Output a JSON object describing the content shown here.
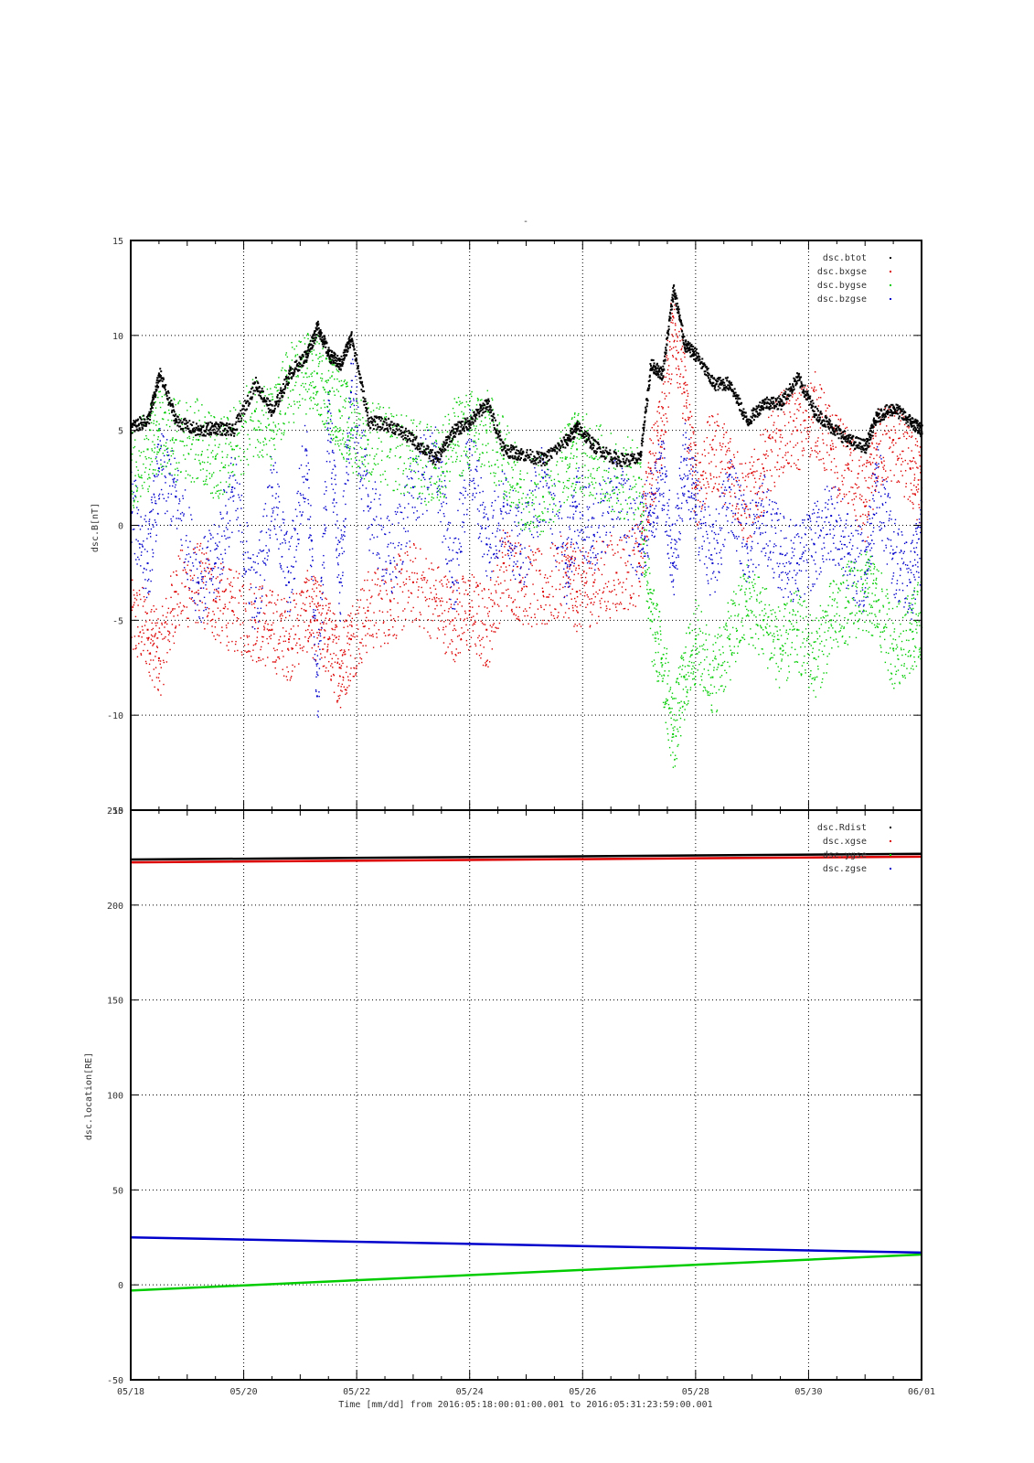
{
  "page_title": "-",
  "footer_xlabel": "Time [mm/dd]  from 2016:05:18:00:01:00.001  to  2016:05:31:23:59:00.001",
  "colors": {
    "black": "#000000",
    "red": "#dd0000",
    "green": "#00cc00",
    "blue": "#0000cc",
    "grid": "#000000"
  },
  "chart_data": [
    {
      "type": "scatter",
      "title": "-",
      "xlabel": "Time [mm/dd]  from 2016:05:18:00:01:00.001  to  2016:05:31:23:59:00.001",
      "ylabel": "dsc.B[nT]",
      "x_tick_labels": [
        "05/18",
        "05/20",
        "05/22",
        "05/24",
        "05/26",
        "05/28",
        "05/30",
        "06/01"
      ],
      "x_range_days": [
        18,
        32
      ],
      "ylim": [
        -15,
        15
      ],
      "yticks": [
        -15,
        -10,
        -5,
        0,
        5,
        10,
        15
      ],
      "grid": true,
      "legend_position": "top-right",
      "series": [
        {
          "name": "dsc.btot",
          "color": "#000000",
          "x": [
            18.0,
            18.3,
            18.5,
            18.8,
            19.2,
            19.5,
            19.8,
            20.2,
            20.5,
            20.8,
            21.1,
            21.3,
            21.5,
            21.7,
            21.9,
            22.2,
            22.6,
            23.0,
            23.4,
            23.7,
            24.0,
            24.3,
            24.6,
            24.9,
            25.3,
            25.7,
            25.9,
            26.2,
            26.6,
            27.0,
            27.2,
            27.4,
            27.6,
            27.8,
            28.0,
            28.3,
            28.6,
            28.9,
            29.2,
            29.5,
            29.8,
            30.1,
            30.4,
            30.7,
            31.0,
            31.2,
            31.5,
            31.8,
            32.0
          ],
          "y": [
            5.2,
            5.6,
            8.0,
            5.5,
            5.0,
            5.2,
            5.0,
            7.5,
            6.0,
            8.0,
            9.0,
            10.5,
            9.0,
            8.5,
            10.0,
            5.5,
            5.3,
            4.5,
            3.5,
            5.0,
            5.5,
            6.5,
            4.0,
            3.8,
            3.5,
            4.5,
            5.2,
            4.2,
            3.5,
            3.5,
            8.5,
            8.0,
            12.5,
            9.5,
            9.0,
            7.5,
            7.5,
            5.5,
            6.5,
            6.5,
            7.8,
            6.0,
            5.2,
            4.5,
            4.2,
            5.8,
            6.2,
            5.5,
            5.0
          ]
        },
        {
          "name": "dsc.bxgse",
          "color": "#dd0000",
          "x": [
            18.0,
            18.3,
            18.5,
            18.8,
            19.2,
            19.5,
            19.8,
            20.2,
            20.5,
            20.8,
            21.1,
            21.3,
            21.5,
            21.7,
            21.9,
            22.2,
            22.6,
            23.0,
            23.4,
            23.7,
            24.0,
            24.3,
            24.6,
            24.9,
            25.3,
            25.7,
            25.9,
            26.2,
            26.6,
            27.0,
            27.2,
            27.4,
            27.6,
            27.8,
            28.0,
            28.3,
            28.6,
            28.9,
            29.2,
            29.5,
            29.8,
            30.1,
            30.4,
            30.7,
            31.0,
            31.2,
            31.5,
            31.8,
            32.0
          ],
          "y": [
            -5.0,
            -5.5,
            -7.0,
            -3.5,
            -3.0,
            -4.0,
            -4.5,
            -5.0,
            -5.5,
            -6.0,
            -4.5,
            -5.0,
            -6.0,
            -7.5,
            -6.0,
            -4.5,
            -4.0,
            -3.0,
            -4.0,
            -5.0,
            -4.5,
            -5.5,
            -2.0,
            -3.0,
            -3.5,
            -2.5,
            -3.5,
            -3.0,
            -2.5,
            -2.0,
            3.0,
            5.0,
            11.0,
            7.0,
            2.0,
            4.0,
            3.0,
            1.0,
            3.0,
            5.0,
            5.0,
            6.0,
            4.0,
            3.0,
            1.0,
            4.0,
            4.5,
            3.0,
            2.0
          ]
        },
        {
          "name": "dsc.bygse",
          "color": "#00cc00",
          "x": [
            18.0,
            18.3,
            18.5,
            18.8,
            19.2,
            19.5,
            19.8,
            20.2,
            20.5,
            20.8,
            21.1,
            21.3,
            21.5,
            21.7,
            21.9,
            22.2,
            22.6,
            23.0,
            23.4,
            23.7,
            24.0,
            24.3,
            24.6,
            24.9,
            25.3,
            25.7,
            25.9,
            26.2,
            26.6,
            27.0,
            27.2,
            27.4,
            27.6,
            27.8,
            28.0,
            28.3,
            28.6,
            28.9,
            29.2,
            29.5,
            29.8,
            30.1,
            30.4,
            30.7,
            31.0,
            31.2,
            31.5,
            31.8,
            32.0
          ],
          "y": [
            3.0,
            4.0,
            5.0,
            4.5,
            4.5,
            3.5,
            4.0,
            6.0,
            5.0,
            7.5,
            8.0,
            8.0,
            7.0,
            6.0,
            5.0,
            4.5,
            4.0,
            3.5,
            3.0,
            4.5,
            5.0,
            5.0,
            3.5,
            2.0,
            1.5,
            3.5,
            4.0,
            3.5,
            2.5,
            2.5,
            -5.0,
            -7.0,
            -11.0,
            -8.0,
            -6.0,
            -8.0,
            -6.0,
            -4.0,
            -5.0,
            -6.5,
            -5.5,
            -7.0,
            -5.0,
            -4.0,
            -3.5,
            -4.0,
            -6.5,
            -5.5,
            -5.0
          ]
        },
        {
          "name": "dsc.bzgse",
          "color": "#0000cc",
          "x": [
            18.0,
            18.3,
            18.5,
            18.8,
            19.2,
            19.5,
            19.8,
            20.2,
            20.5,
            20.8,
            21.1,
            21.3,
            21.5,
            21.7,
            21.9,
            22.2,
            22.6,
            23.0,
            23.4,
            23.7,
            24.0,
            24.3,
            24.6,
            24.9,
            25.3,
            25.7,
            25.9,
            26.2,
            26.6,
            27.0,
            27.2,
            27.4,
            27.6,
            27.8,
            28.0,
            28.3,
            28.6,
            28.9,
            29.2,
            29.5,
            29.8,
            30.1,
            30.4,
            30.7,
            31.0,
            31.2,
            31.5,
            31.8,
            32.0
          ],
          "y": [
            1.0,
            -2.0,
            3.0,
            1.5,
            -3.0,
            -2.0,
            2.0,
            -4.0,
            2.0,
            -3.0,
            4.0,
            -9.0,
            6.0,
            -3.0,
            7.0,
            1.0,
            -2.0,
            2.0,
            3.5,
            -3.0,
            4.0,
            -1.0,
            1.0,
            -1.5,
            2.5,
            -2.0,
            1.0,
            -0.5,
            2.0,
            -1.0,
            1.0,
            3.0,
            -2.0,
            3.5,
            1.0,
            -2.0,
            2.0,
            -1.0,
            0.5,
            -1.5,
            -2.0,
            -1.0,
            0.5,
            -1.5,
            -2.5,
            2.5,
            -1.5,
            -3.0,
            -0.5
          ]
        }
      ]
    },
    {
      "type": "line",
      "ylabel": "dsc.location[RE]",
      "x_tick_labels": [
        "05/18",
        "05/20",
        "05/22",
        "05/24",
        "05/26",
        "05/28",
        "05/30",
        "06/01"
      ],
      "x_range_days": [
        18,
        32
      ],
      "ylim": [
        -50,
        250
      ],
      "yticks": [
        -50,
        0,
        50,
        100,
        150,
        200,
        250
      ],
      "grid": true,
      "legend_position": "top-right",
      "series": [
        {
          "name": "dsc.Rdist",
          "color": "#000000",
          "x": [
            18,
            32
          ],
          "y": [
            224,
            227
          ]
        },
        {
          "name": "dsc.xgse",
          "color": "#dd0000",
          "x": [
            18,
            32
          ],
          "y": [
            222.5,
            225.5
          ]
        },
        {
          "name": "dsc.ygse",
          "color": "#00cc00",
          "x": [
            18,
            32
          ],
          "y": [
            -3,
            16
          ]
        },
        {
          "name": "dsc.zgse",
          "color": "#0000cc",
          "x": [
            18,
            32
          ],
          "y": [
            25,
            17
          ]
        }
      ]
    }
  ]
}
